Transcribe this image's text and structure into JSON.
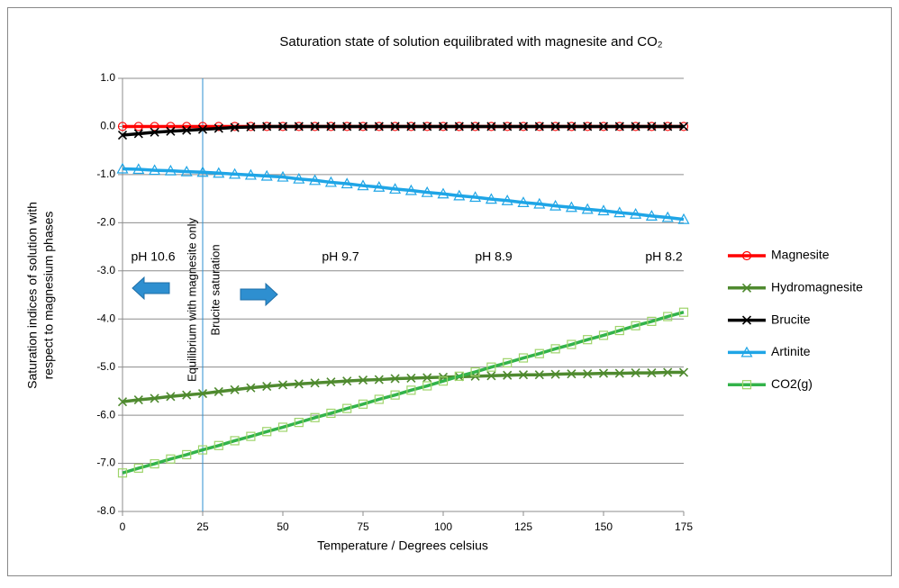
{
  "chart_data": {
    "type": "line",
    "title": "Saturation state of solution equilibrated with magnesite and CO₂",
    "x_label": "Temperature / Degrees celsius",
    "y_label": [
      "Saturation indices of solution with",
      "respect to magnesium phases"
    ],
    "x": [
      0,
      5,
      10,
      15,
      20,
      25,
      30,
      35,
      40,
      45,
      50,
      55,
      60,
      65,
      70,
      75,
      80,
      85,
      90,
      95,
      100,
      105,
      110,
      115,
      120,
      125,
      130,
      135,
      140,
      145,
      150,
      155,
      160,
      165,
      170,
      175
    ],
    "series": [
      {
        "name": "Magnesite",
        "color": "#ff0000",
        "marker": "circle",
        "values": [
          0,
          0,
          0,
          0,
          0,
          0,
          0,
          0,
          0,
          0,
          0,
          0,
          0,
          0,
          0,
          0,
          0,
          0,
          0,
          0,
          0,
          0,
          0,
          0,
          0,
          0,
          0,
          0,
          0,
          0,
          0,
          0,
          0,
          0,
          0,
          0
        ]
      },
      {
        "name": "Hydromagnesite",
        "color": "#4f8a2f",
        "marker": "x",
        "values": [
          -5.72,
          -5.68,
          -5.65,
          -5.61,
          -5.58,
          -5.55,
          -5.51,
          -5.47,
          -5.43,
          -5.4,
          -5.37,
          -5.35,
          -5.33,
          -5.31,
          -5.29,
          -5.27,
          -5.26,
          -5.24,
          -5.23,
          -5.22,
          -5.21,
          -5.2,
          -5.19,
          -5.18,
          -5.17,
          -5.16,
          -5.16,
          -5.15,
          -5.14,
          -5.14,
          -5.13,
          -5.13,
          -5.12,
          -5.12,
          -5.11,
          -5.11
        ]
      },
      {
        "name": "Brucite",
        "color": "#000000",
        "marker": "x",
        "values": [
          -0.18,
          -0.15,
          -0.12,
          -0.1,
          -0.08,
          -0.06,
          -0.04,
          -0.02,
          -0.01,
          0,
          0,
          0,
          0,
          0,
          0,
          0,
          0,
          0,
          0,
          0,
          0,
          0,
          0,
          0,
          0,
          0,
          0,
          0,
          0,
          0,
          0,
          0,
          0,
          0,
          0,
          0
        ]
      },
      {
        "name": "Artinite",
        "color": "#1fa5e6",
        "marker": "triangle",
        "values": [
          -0.88,
          -0.89,
          -0.91,
          -0.92,
          -0.94,
          -0.95,
          -0.97,
          -0.99,
          -1.01,
          -1.03,
          -1.05,
          -1.09,
          -1.12,
          -1.16,
          -1.19,
          -1.23,
          -1.26,
          -1.3,
          -1.33,
          -1.37,
          -1.4,
          -1.44,
          -1.47,
          -1.51,
          -1.54,
          -1.58,
          -1.61,
          -1.65,
          -1.68,
          -1.72,
          -1.75,
          -1.79,
          -1.82,
          -1.86,
          -1.89,
          -1.93
        ]
      },
      {
        "name": "CO2(g)",
        "color": "#33b34a",
        "marker": "square",
        "marker_color": "#9ed46a",
        "values": [
          -7.2,
          -7.1,
          -7.01,
          -6.91,
          -6.82,
          -6.72,
          -6.63,
          -6.53,
          -6.44,
          -6.34,
          -6.25,
          -6.15,
          -6.05,
          -5.96,
          -5.86,
          -5.77,
          -5.67,
          -5.58,
          -5.48,
          -5.39,
          -5.29,
          -5.19,
          -5.1,
          -5.0,
          -4.91,
          -4.81,
          -4.72,
          -4.62,
          -4.53,
          -4.43,
          -4.34,
          -4.24,
          -4.14,
          -4.05,
          -3.95,
          -3.86
        ]
      }
    ],
    "xlim": [
      0,
      175
    ],
    "xticks": [
      0,
      25,
      50,
      75,
      100,
      125,
      150,
      175
    ],
    "ylim": [
      -8,
      1
    ],
    "yticks": [
      {
        "value": 1,
        "label": "1.0"
      },
      {
        "value": 0,
        "label": "0.0"
      },
      {
        "value": -1,
        "label": "-1.0"
      },
      {
        "value": -2,
        "label": "-2.0"
      },
      {
        "value": -3,
        "label": "-3.0"
      },
      {
        "value": -4,
        "label": "-4.0"
      },
      {
        "value": -5,
        "label": "-5.0"
      },
      {
        "value": -6,
        "label": "-6.0"
      },
      {
        "value": -7,
        "label": "-7.0"
      },
      {
        "value": -8,
        "label": "-8.0"
      }
    ],
    "grid": true,
    "legend": "right",
    "vline": 25,
    "vline_color": "#2e8fd0",
    "ph_labels": [
      "pH 10.6",
      "pH 9.7",
      "pH 8.9",
      "pH 8.2"
    ],
    "vline_labels": [
      "Equilibrium with magnesite only",
      "Brucite saturation"
    ]
  }
}
